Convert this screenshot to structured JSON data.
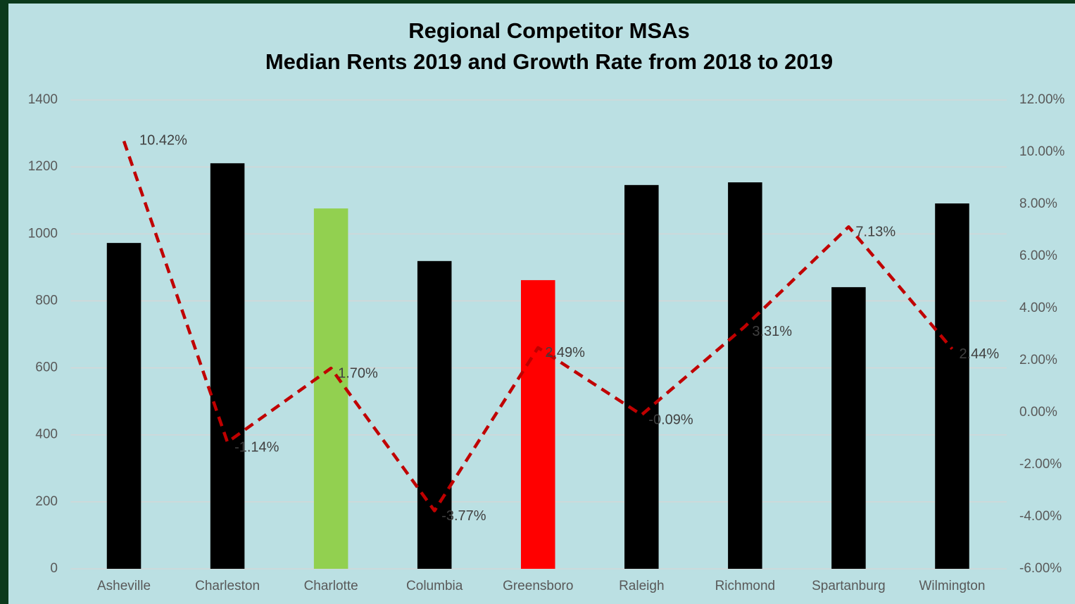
{
  "chart_data": {
    "type": "combo",
    "title": "Regional Competitor MSAs",
    "subtitle": "Median Rents 2019 and Growth Rate from 2018 to 2019",
    "categories": [
      "Asheville",
      "Charleston",
      "Charlotte",
      "Columbia",
      "Greensboro",
      "Raleigh",
      "Richmond",
      "Spartanburg",
      "Wilmington"
    ],
    "series": [
      {
        "type": "bar",
        "values": [
          973,
          1211,
          1076,
          919,
          862,
          1146,
          1154,
          841,
          1091
        ],
        "colors": [
          "#000000",
          "#000000",
          "#92d050",
          "#000000",
          "#ff0000",
          "#000000",
          "#000000",
          "#000000",
          "#000000"
        ]
      },
      {
        "type": "line",
        "axis": "y2",
        "color": "#c00000",
        "dashed": true,
        "values": [
          10.42,
          -1.14,
          1.7,
          -3.77,
          2.49,
          -0.09,
          3.31,
          7.13,
          2.44
        ],
        "value_labels": [
          "10.42%",
          "-1.14%",
          "1.70%",
          "-3.77%",
          "2.49%",
          "-0.09%",
          "3.31%",
          "7.13%",
          "2.44%"
        ]
      }
    ],
    "ylim": [
      0,
      1400
    ],
    "yticks": [
      0,
      200,
      400,
      600,
      800,
      1000,
      1200,
      1400
    ],
    "y2lim": [
      -6,
      12
    ],
    "y2ticks": [
      {
        "value": -6,
        "label": "-6.00%"
      },
      {
        "value": -4,
        "label": "-4.00%"
      },
      {
        "value": -2,
        "label": "-2.00%"
      },
      {
        "value": 0,
        "label": "0.00%"
      },
      {
        "value": 2,
        "label": "2.00%"
      },
      {
        "value": 4,
        "label": "4.00%"
      },
      {
        "value": 6,
        "label": "6.00%"
      },
      {
        "value": 8,
        "label": "8.00%"
      },
      {
        "value": 10,
        "label": "10.00%"
      },
      {
        "value": 12,
        "label": "12.00%"
      }
    ],
    "grid": true
  }
}
